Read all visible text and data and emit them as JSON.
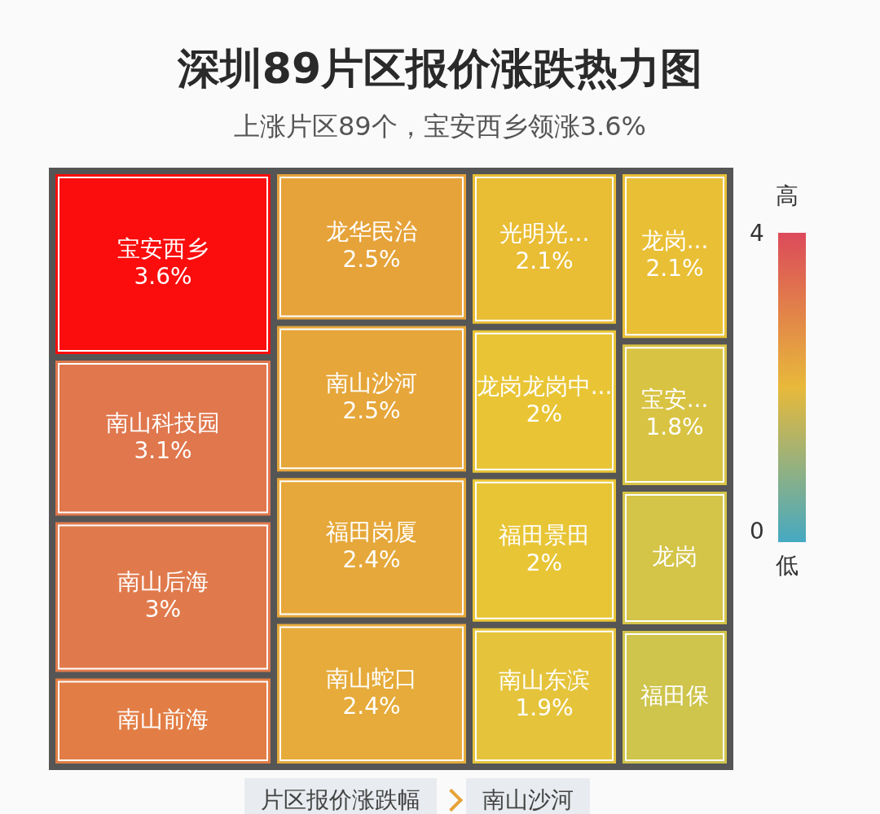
{
  "chart_data": {
    "type": "other",
    "title": "深圳89片区报价涨跌热力图",
    "subtitle": "上涨片区89个，宝安西乡领涨3.6%",
    "categories": [
      "宝安西乡",
      "南山科技园",
      "南山后海",
      "南山前海",
      "龙华民治",
      "南山沙河",
      "福田岗厦",
      "南山蛇口",
      "光明光...",
      "龙岗龙岗中...",
      "福田景田",
      "南山东滨",
      "龙岗...",
      "宝安...",
      "龙岗",
      "福田保"
    ],
    "values": [
      3.6,
      3.1,
      3,
      null,
      2.5,
      2.5,
      2.4,
      2.4,
      2.1,
      2,
      2,
      1.9,
      2.1,
      1.8,
      null,
      null
    ],
    "value_labels": [
      "3.6%",
      "3.1%",
      "3%",
      null,
      "2.5%",
      "2.5%",
      "2.4%",
      "2.4%",
      "2.1%",
      "2%",
      "2%",
      "1.9%",
      "2.1%",
      "1.8%",
      null,
      null
    ],
    "colors": [
      "#fb0d0d",
      "#e0774d",
      "#e07a4c",
      "#e27e45",
      "#e6a33a",
      "#e6a63a",
      "#e6a83a",
      "#e6ab3a",
      "#e9bd34",
      "#e9c535",
      "#e8c535",
      "#e5c43c",
      "#e9bf35",
      "#d9c343",
      "#d4c448",
      "#cfc44c"
    ],
    "annotations": [
      "高",
      "低",
      "片区报价涨跌幅",
      "南山沙河",
      "4",
      "0"
    ]
  }
}
